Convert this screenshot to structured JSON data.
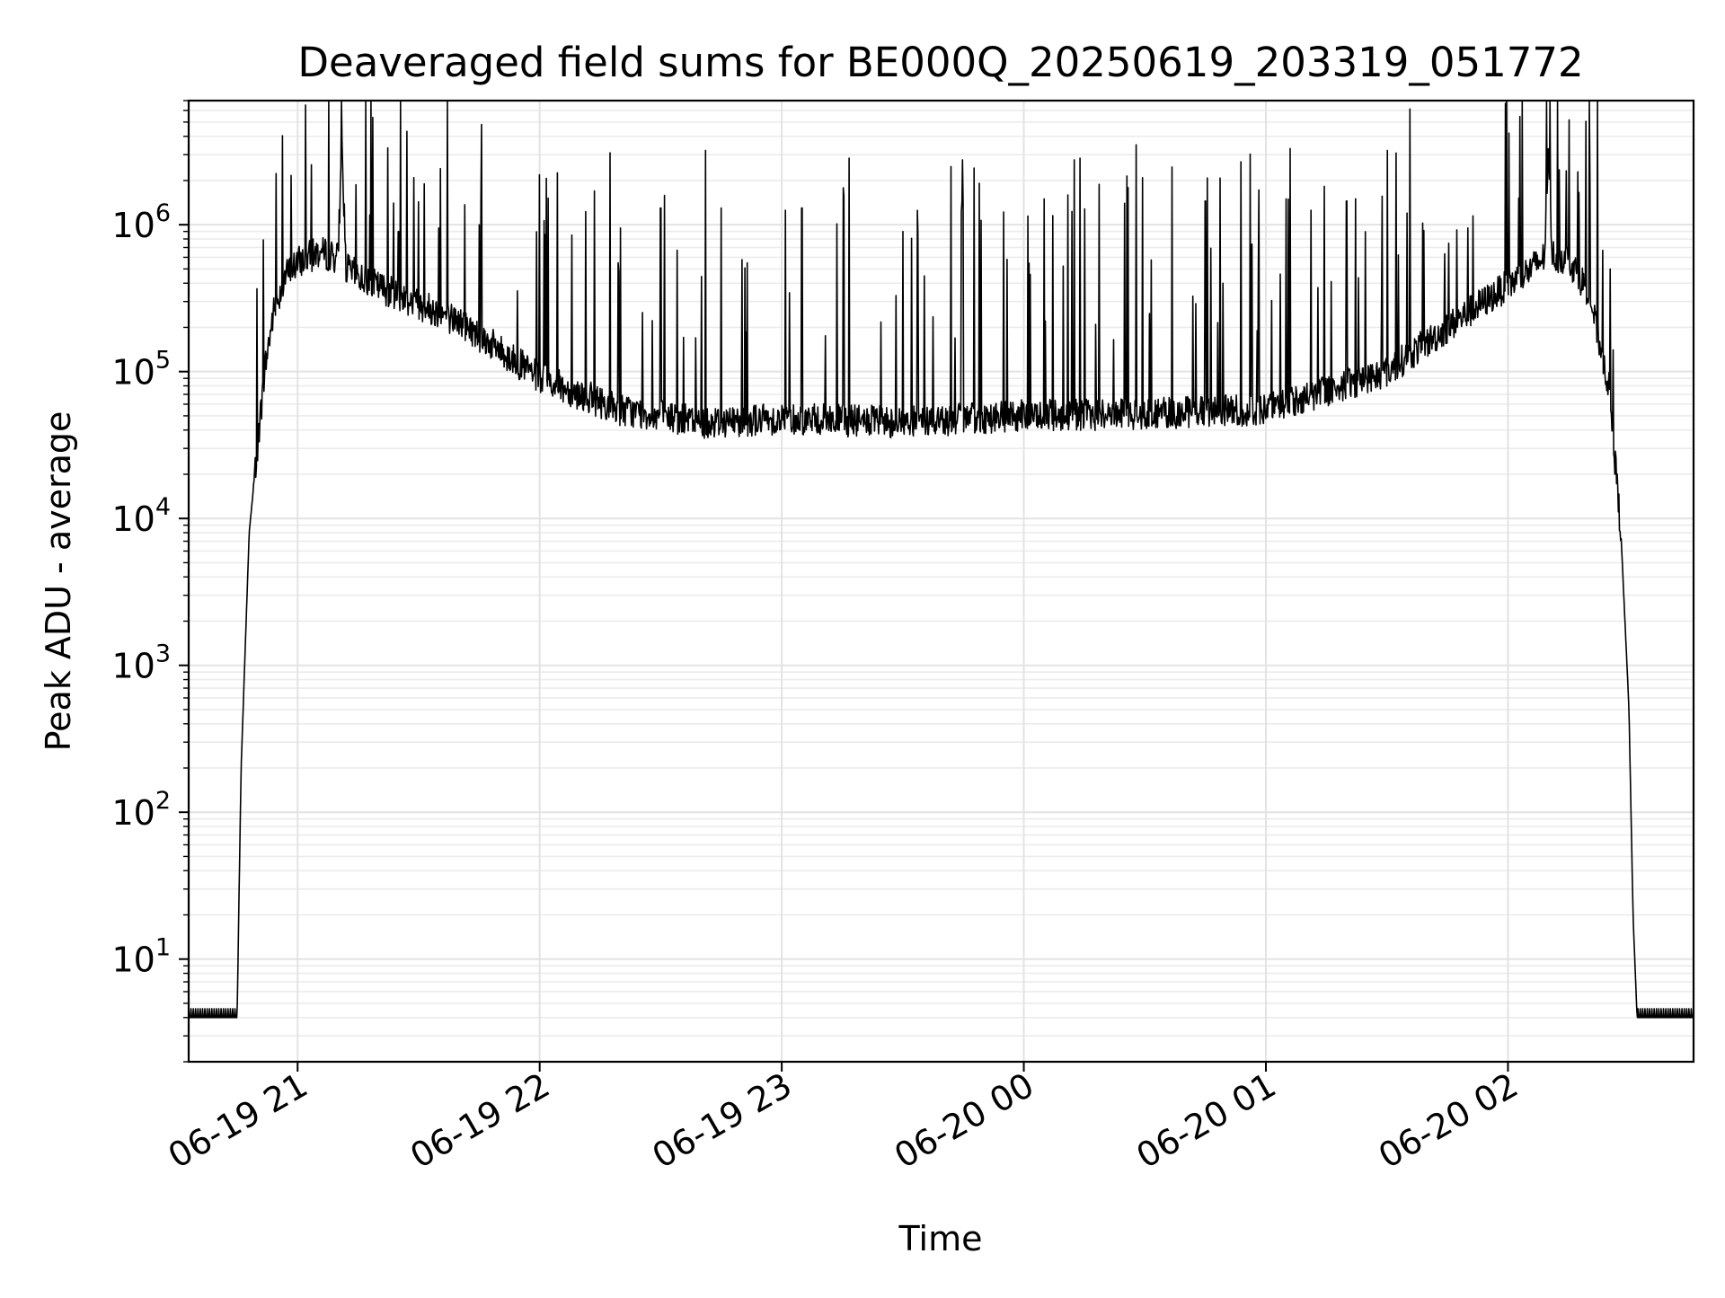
{
  "chart_data": {
    "type": "line",
    "title": "Deaveraged field sums for BE000Q_20250619_203319_051772",
    "xlabel": "Time",
    "ylabel": "Peak ADU - average",
    "x_axis": {
      "scale": "time",
      "range": [
        "2025-06-19 20:33",
        "2025-06-20 02:46"
      ],
      "tick_labels": [
        "06-19 21",
        "06-19 22",
        "06-19 23",
        "06-20 00",
        "06-20 01",
        "06-20 02"
      ],
      "tick_values": [
        "2025-06-19 21:00",
        "2025-06-19 22:00",
        "2025-06-19 23:00",
        "2025-06-20 00:00",
        "2025-06-20 01:00",
        "2025-06-20 02:00"
      ],
      "tick_label_rotation": 30
    },
    "y_axis": {
      "scale": "log",
      "range": [
        2,
        7000000
      ],
      "tick_values": [
        10,
        100,
        1000,
        10000,
        100000,
        1000000
      ],
      "tick_labels": [
        {
          "base": "10",
          "exp": "1"
        },
        {
          "base": "10",
          "exp": "2"
        },
        {
          "base": "10",
          "exp": "3"
        },
        {
          "base": "10",
          "exp": "4"
        },
        {
          "base": "10",
          "exp": "5"
        },
        {
          "base": "10",
          "exp": "6"
        }
      ]
    },
    "grid": "major and minor",
    "line_color": "#000000",
    "series": [
      {
        "x": [
          "2025-06-19 20:33",
          "2025-06-19 20:45",
          "2025-06-19 20:46",
          "2025-06-19 20:48",
          "2025-06-19 20:50",
          "2025-06-19 20:52",
          "2025-06-19 20:54",
          "2025-06-19 20:57",
          "2025-06-19 21:00",
          "2025-06-19 21:05",
          "2025-06-19 21:10",
          "2025-06-19 21:11",
          "2025-06-19 21:12",
          "2025-06-19 21:20",
          "2025-06-19 21:40",
          "2025-06-19 22:00",
          "2025-06-19 22:20",
          "2025-06-19 22:40",
          "2025-06-19 23:00",
          "2025-06-19 23:30",
          "2025-06-20 00:00",
          "2025-06-20 00:30",
          "2025-06-20 01:00",
          "2025-06-20 01:30",
          "2025-06-20 01:50",
          "2025-06-20 02:05",
          "2025-06-20 02:09",
          "2025-06-20 02:10",
          "2025-06-20 02:11",
          "2025-06-20 02:15",
          "2025-06-20 02:20",
          "2025-06-20 02:25",
          "2025-06-20 02:28",
          "2025-06-20 02:30",
          "2025-06-20 02:31",
          "2025-06-20 02:32",
          "2025-06-20 02:46"
        ],
        "y": [
          4,
          4,
          200,
          8000,
          30000,
          110000,
          250000,
          450000,
          550000,
          650000,
          600000,
          3500000,
          500000,
          380000,
          220000,
          90000,
          55000,
          45000,
          48000,
          45000,
          50000,
          52000,
          55000,
          100000,
          250000,
          480000,
          600000,
          3100000,
          620000,
          580000,
          350000,
          80000,
          8000,
          500,
          20,
          4,
          4
        ],
        "spikes": [
          {
            "x": "2025-06-19 21:25",
            "y": 900000
          },
          {
            "x": "2025-06-19 21:35",
            "y": 950000
          },
          {
            "x": "2025-06-19 21:45",
            "y": 1000000
          },
          {
            "x": "2025-06-19 22:08",
            "y": 850000
          },
          {
            "x": "2025-06-19 22:20",
            "y": 950000
          },
          {
            "x": "2025-06-19 22:30",
            "y": 1300000
          },
          {
            "x": "2025-06-19 22:45",
            "y": 1300000
          },
          {
            "x": "2025-06-19 23:05",
            "y": 1300000
          },
          {
            "x": "2025-06-19 23:30",
            "y": 900000
          },
          {
            "x": "2025-06-19 23:45",
            "y": 1400000
          },
          {
            "x": "2025-06-20 00:05",
            "y": 1500000
          },
          {
            "x": "2025-06-20 00:25",
            "y": 1400000
          },
          {
            "x": "2025-06-20 00:45",
            "y": 1450000
          },
          {
            "x": "2025-06-20 01:05",
            "y": 1500000
          },
          {
            "x": "2025-06-20 01:20",
            "y": 1450000
          },
          {
            "x": "2025-06-20 01:35",
            "y": 1200000
          },
          {
            "x": "2025-06-20 01:50",
            "y": 950000
          }
        ]
      }
    ]
  }
}
